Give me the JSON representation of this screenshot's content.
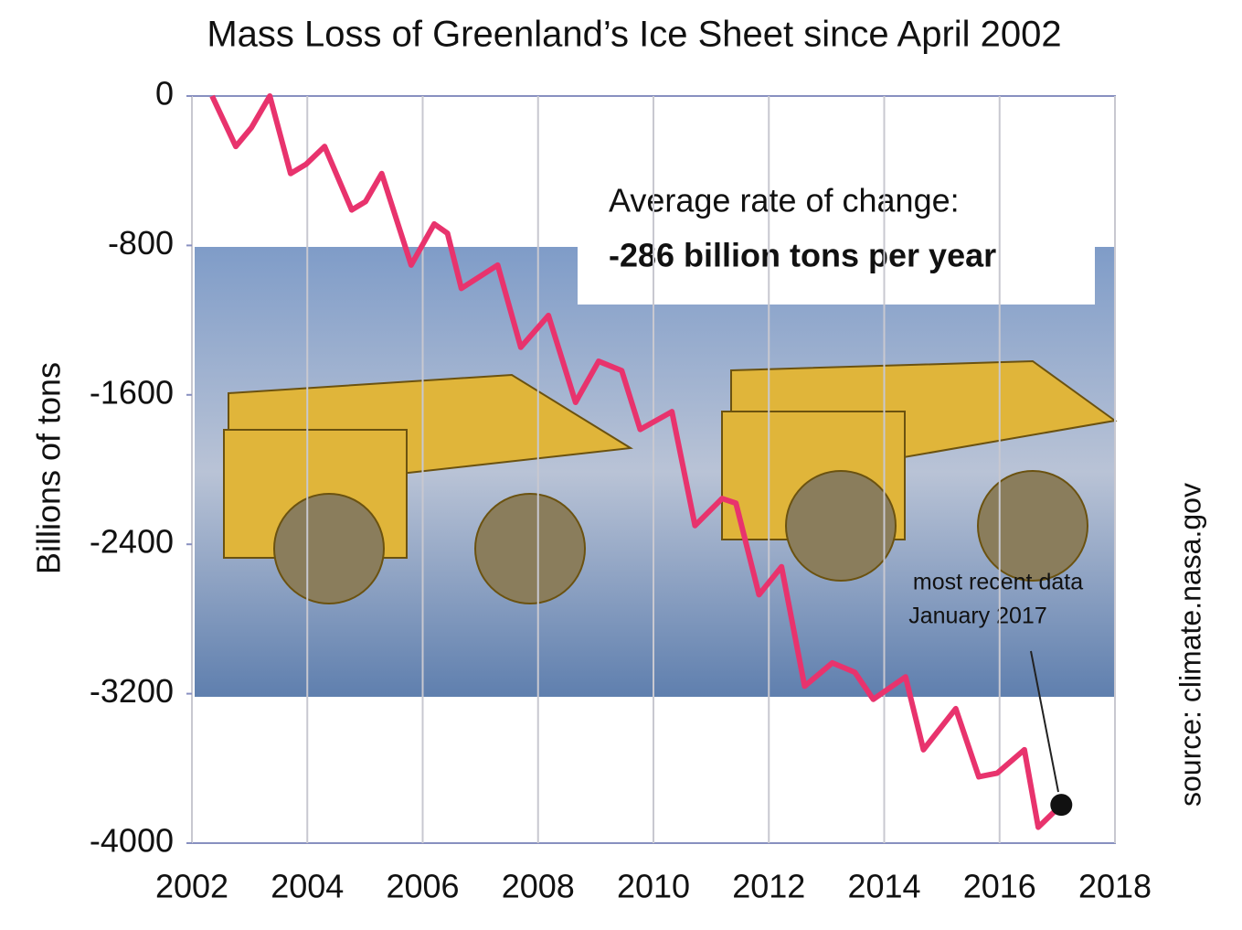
{
  "chart_data": {
    "type": "line",
    "title": "Mass Loss of Greenland’s Ice Sheet since April 2002",
    "y_label": "Billions of tons",
    "source": "source: climate.nasa.gov",
    "annotation_rate": {
      "line1": "Average rate of change:",
      "line2": "-286 billion tons per year"
    },
    "annotation_recent": {
      "line1": "most recent data",
      "line2": "January 2017"
    },
    "color": "#e8336d",
    "x": [
      2002.35,
      2002.76,
      2003.03,
      2003.35,
      2003.71,
      2003.98,
      2004.3,
      2004.77,
      2005.01,
      2005.29,
      2005.8,
      2006.2,
      2006.43,
      2006.67,
      2007.3,
      2007.7,
      2008.18,
      2008.65,
      2009.05,
      2009.45,
      2009.77,
      2010.32,
      2010.72,
      2011.19,
      2011.43,
      2011.83,
      2012.22,
      2012.62,
      2013.1,
      2013.49,
      2013.81,
      2014.37,
      2014.68,
      2015.24,
      2015.64,
      2015.96,
      2016.43,
      2016.67,
      2017.07
    ],
    "values": [
      0,
      -270,
      -170,
      0,
      -415,
      -365,
      -270,
      -610,
      -565,
      -415,
      -905,
      -685,
      -735,
      -1030,
      -905,
      -1345,
      -1175,
      -1640,
      -1420,
      -1470,
      -1785,
      -1690,
      -2300,
      -2155,
      -2180,
      -2670,
      -2520,
      -3160,
      -3035,
      -3085,
      -3230,
      -3110,
      -3500,
      -3280,
      -3645,
      -3625,
      -3500,
      -3915,
      -3795
    ],
    "xlim": [
      2002,
      2018
    ],
    "ylim": [
      -4000,
      0
    ],
    "xticks": [
      2002,
      2004,
      2006,
      2008,
      2010,
      2012,
      2014,
      2016,
      2018
    ],
    "yticks": [
      0,
      -800,
      -1600,
      -2400,
      -3200,
      -4000
    ],
    "grid": "x",
    "mark_last": true
  }
}
